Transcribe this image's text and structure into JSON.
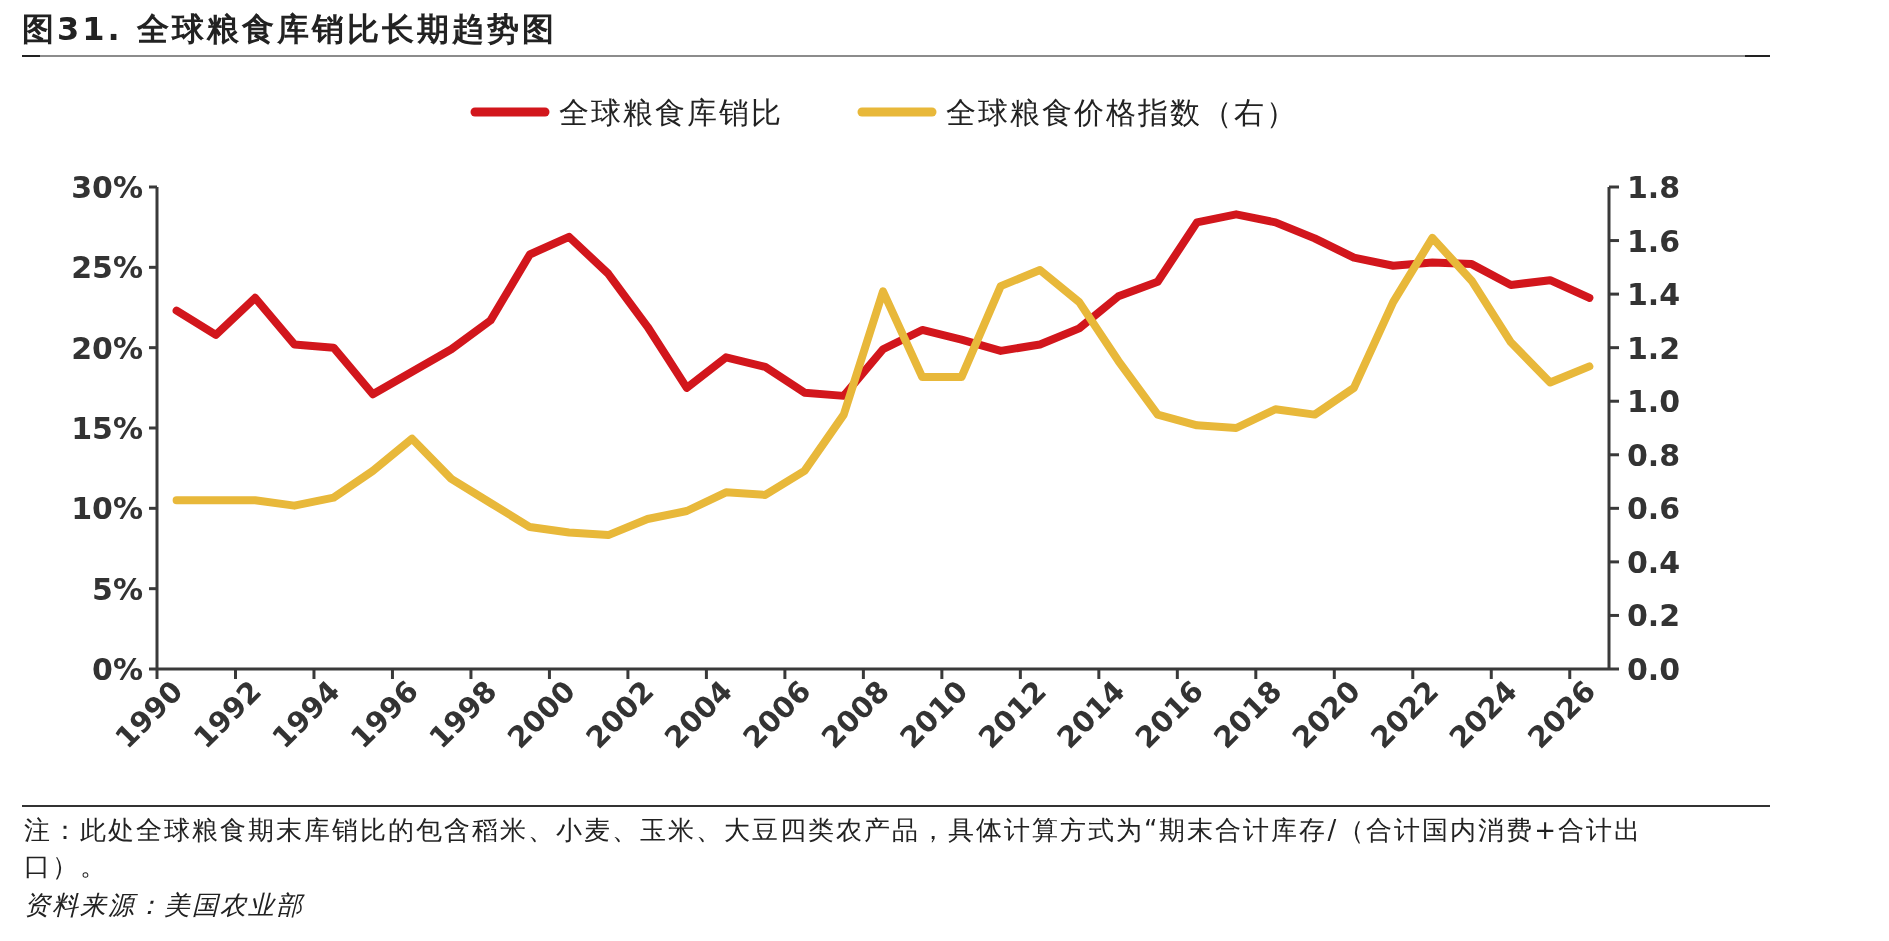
{
  "chart_data": {
    "type": "line",
    "title": "图31. 全球粮食库销比长期趋势图",
    "categories": [
      "1990",
      null,
      "1992",
      null,
      "1994",
      null,
      "1996",
      null,
      "1998",
      null,
      "2000",
      null,
      "2002",
      null,
      "2004",
      null,
      "2006",
      null,
      "2008",
      null,
      "2010",
      null,
      "2012",
      null,
      "2014",
      null,
      "2016",
      null,
      "2018",
      null,
      "2020",
      null,
      "2022",
      null,
      "2024",
      null,
      "2026"
    ],
    "series": [
      {
        "name": "全球粮食库销比",
        "color": "#d2161c",
        "values": [
          22.3,
          20.8,
          23.1,
          20.2,
          20.0,
          17.1,
          18.5,
          19.9,
          21.7,
          25.8,
          26.9,
          24.6,
          21.3,
          17.5,
          19.4,
          18.8,
          17.2,
          17.0,
          19.9,
          21.1,
          20.5,
          19.8,
          20.2,
          21.2,
          23.2,
          24.1,
          27.8,
          28.3,
          27.8,
          26.8,
          25.6,
          25.1,
          25.3,
          25.2,
          23.9,
          24.2,
          23.1
        ]
      },
      {
        "name": "全球粮食价格指数（右）",
        "color": "#e8b83a",
        "axis": "y2",
        "values": [
          0.63,
          0.63,
          0.63,
          0.61,
          0.64,
          0.74,
          0.86,
          0.71,
          0.62,
          0.53,
          0.51,
          0.5,
          0.56,
          0.59,
          0.66,
          0.65,
          0.74,
          0.95,
          1.41,
          1.09,
          1.09,
          1.43,
          1.49,
          1.37,
          1.15,
          0.95,
          0.91,
          0.9,
          0.97,
          0.95,
          1.05,
          1.37,
          1.61,
          1.45,
          1.22,
          1.07,
          1.13
        ]
      }
    ],
    "ylim": [
      0,
      30
    ],
    "yticks": [
      {
        "value": 0,
        "label": "0%"
      },
      {
        "value": 5,
        "label": "5%"
      },
      {
        "value": 10,
        "label": "10%"
      },
      {
        "value": 15,
        "label": "15%"
      },
      {
        "value": 20,
        "label": "20%"
      },
      {
        "value": 25,
        "label": "25%"
      },
      {
        "value": 30,
        "label": "30%"
      }
    ],
    "y2lim": [
      0,
      1.8
    ],
    "y2ticks": [
      {
        "value": 0,
        "label": "0.0"
      },
      {
        "value": 0.2,
        "label": "0.2"
      },
      {
        "value": 0.4,
        "label": "0.4"
      },
      {
        "value": 0.6,
        "label": "0.6"
      },
      {
        "value": 0.8,
        "label": "0.8"
      },
      {
        "value": 1.0,
        "label": "1.0"
      },
      {
        "value": 1.2,
        "label": "1.2"
      },
      {
        "value": 1.4,
        "label": "1.4"
      },
      {
        "value": 1.6,
        "label": "1.6"
      },
      {
        "value": 1.8,
        "label": "1.8"
      }
    ],
    "legend": "top",
    "marker": "none",
    "line_style": "solid",
    "annotations": [
      "注：此处全球粮食期末库销比的包含稻米、小麦、玉米、大豆四类农产品，具体计算方式为“期末合计库存/（合计国内消费+合计出口）。",
      "资料来源：美国农业部"
    ]
  }
}
